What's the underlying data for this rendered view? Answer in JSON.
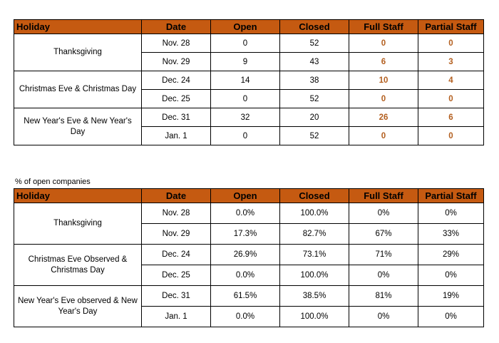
{
  "columns": [
    "Holiday",
    "Date",
    "Open",
    "Closed",
    "Full Staff",
    "Partial Staff"
  ],
  "table1": {
    "groups": [
      {
        "holiday": "Thanksgiving",
        "rows": [
          {
            "date": "Nov. 28",
            "open": "0",
            "closed": "52",
            "full": "0",
            "partial": "0"
          },
          {
            "date": "Nov. 29",
            "open": "9",
            "closed": "43",
            "full": "6",
            "partial": "3"
          }
        ]
      },
      {
        "holiday": "Christmas Eve & Christmas Day",
        "rows": [
          {
            "date": "Dec. 24",
            "open": "14",
            "closed": "38",
            "full": "10",
            "partial": "4"
          },
          {
            "date": "Dec. 25",
            "open": "0",
            "closed": "52",
            "full": "0",
            "partial": "0"
          }
        ]
      },
      {
        "holiday": "New Year's Eve & New Year's Day",
        "rows": [
          {
            "date": "Dec. 31",
            "open": "32",
            "closed": "20",
            "full": "26",
            "partial": "6"
          },
          {
            "date": "Jan. 1",
            "open": "0",
            "closed": "52",
            "full": "0",
            "partial": "0"
          }
        ]
      }
    ]
  },
  "caption": "% of open companies",
  "table2": {
    "groups": [
      {
        "holiday": "Thanksgiving",
        "rows": [
          {
            "date": "Nov. 28",
            "open": "0.0%",
            "closed": "100.0%",
            "full": "0%",
            "partial": "0%"
          },
          {
            "date": "Nov. 29",
            "open": "17.3%",
            "closed": "82.7%",
            "full": "67%",
            "partial": "33%"
          }
        ]
      },
      {
        "holiday": "Christmas Eve Observed & Christmas Day",
        "rows": [
          {
            "date": "Dec. 24",
            "open": "26.9%",
            "closed": "73.1%",
            "full": "71%",
            "partial": "29%"
          },
          {
            "date": "Dec. 25",
            "open": "0.0%",
            "closed": "100.0%",
            "full": "0%",
            "partial": "0%"
          }
        ]
      },
      {
        "holiday": "New Year's Eve observed & New Year's Day",
        "rows": [
          {
            "date": "Dec. 31",
            "open": "61.5%",
            "closed": "38.5%",
            "full": "81%",
            "partial": "19%"
          },
          {
            "date": "Jan. 1",
            "open": "0.0%",
            "closed": "100.0%",
            "full": "0%",
            "partial": "0%"
          }
        ]
      }
    ]
  },
  "colors": {
    "header_bg": "#c55a11",
    "staff_count_text": "#b35f1f",
    "border": "#000000"
  }
}
